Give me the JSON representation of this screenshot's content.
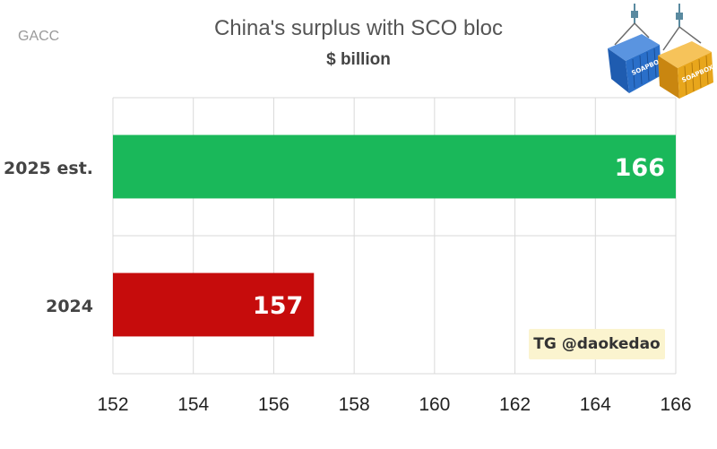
{
  "source": "GACC",
  "chart_data": {
    "type": "bar",
    "orientation": "horizontal",
    "title": "China's surplus with SCO bloc",
    "subtitle": "$ billion",
    "categories": [
      "2025 est.",
      "2024"
    ],
    "values": [
      166,
      157
    ],
    "value_labels": [
      "166",
      "157"
    ],
    "bar_colors": [
      "#1ab85a",
      "#c60c0c"
    ],
    "xlim": [
      152,
      166
    ],
    "xticks": [
      152,
      154,
      156,
      158,
      160,
      162,
      164,
      166
    ],
    "grid": true,
    "xlabel": "",
    "ylabel": ""
  },
  "logo": {
    "label_left": "SOAPBOX",
    "label_right": "SOAPBOX",
    "colors": {
      "left": "#2a6fc9",
      "right": "#e8a61c",
      "hook": "#5a8aa0"
    }
  },
  "watermark": "TG @daokedao"
}
